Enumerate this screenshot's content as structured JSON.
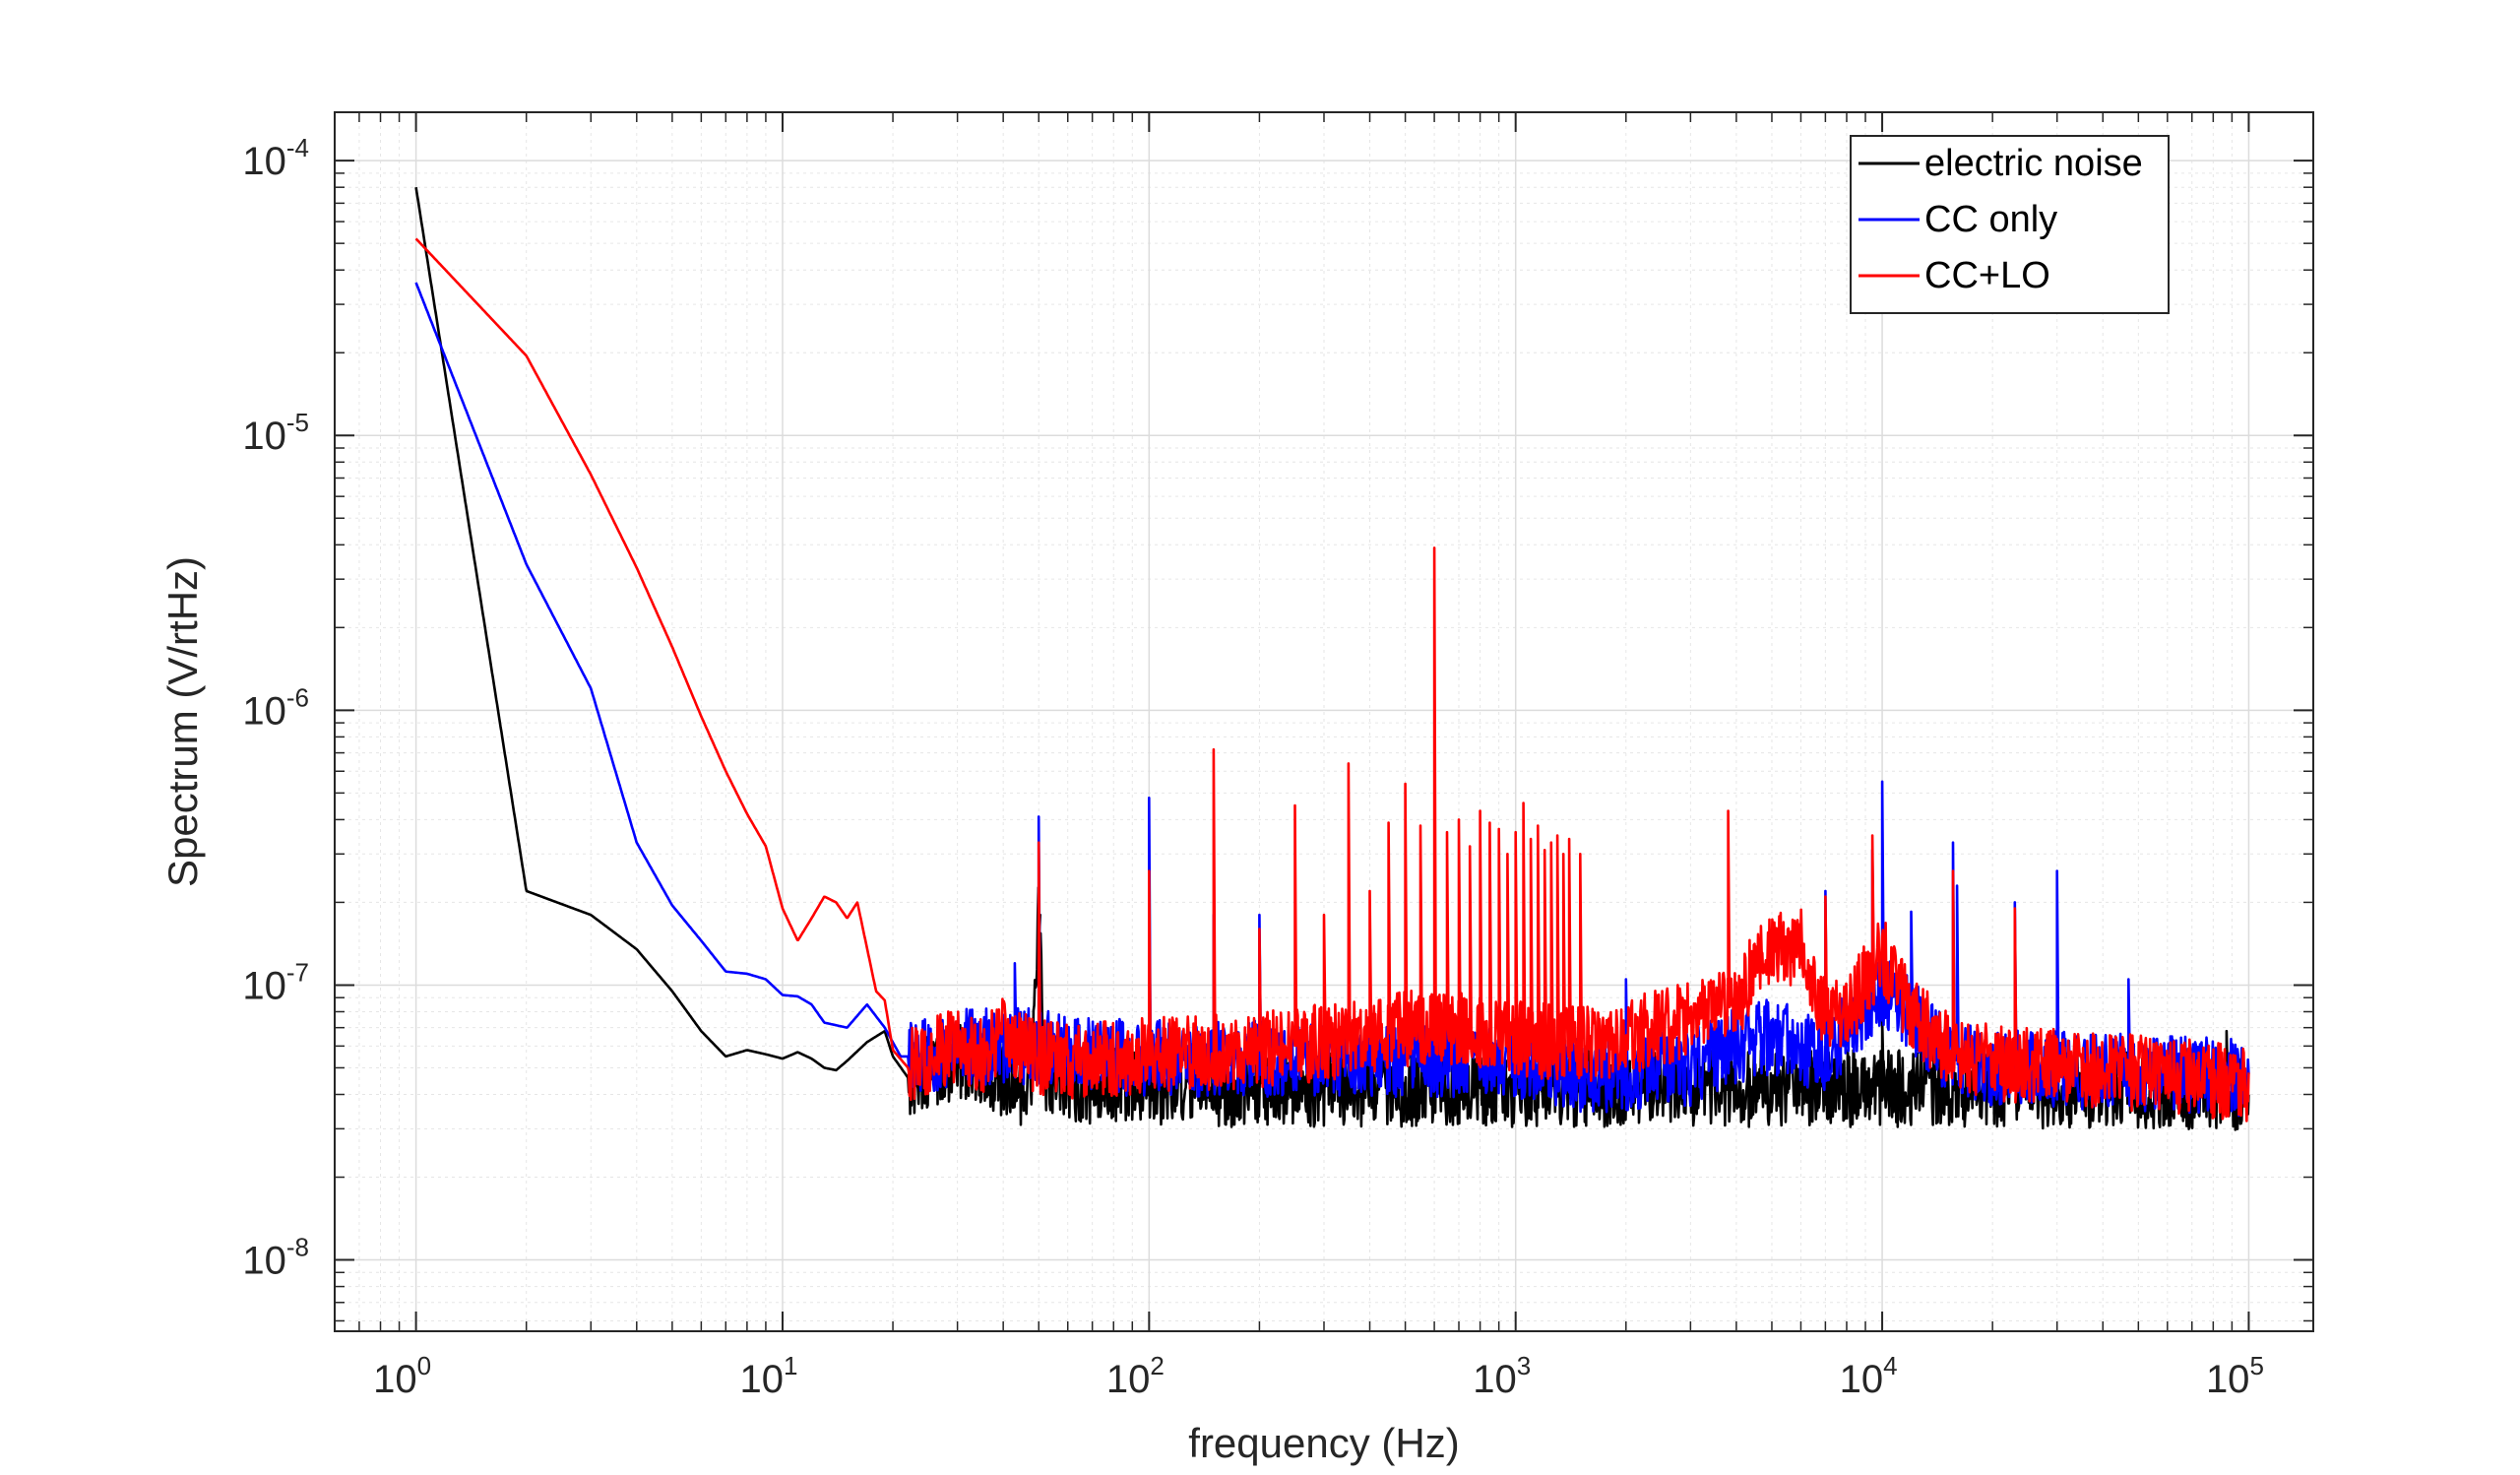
{
  "chart_data": {
    "type": "line",
    "xlabel": "frequency (Hz)",
    "ylabel": "Spectrum (V/rtHz)",
    "xscale": "log",
    "yscale": "log",
    "xlim": [
      0.6,
      150000
    ],
    "ylim": [
      5.5e-09,
      0.00015
    ],
    "x_ticks": [
      {
        "base": "10",
        "exp": "0",
        "value": 1
      },
      {
        "base": "10",
        "exp": "1",
        "value": 10
      },
      {
        "base": "10",
        "exp": "2",
        "value": 100
      },
      {
        "base": "10",
        "exp": "3",
        "value": 1000
      },
      {
        "base": "10",
        "exp": "4",
        "value": 10000
      },
      {
        "base": "10",
        "exp": "5",
        "value": 100000
      }
    ],
    "y_ticks": [
      {
        "base": "10",
        "exp": "-8",
        "value": 1e-08
      },
      {
        "base": "10",
        "exp": "-7",
        "value": 1e-07
      },
      {
        "base": "10",
        "exp": "-6",
        "value": 1e-06
      },
      {
        "base": "10",
        "exp": "-5",
        "value": 1e-05
      },
      {
        "base": "10",
        "exp": "-4",
        "value": 0.0001
      }
    ],
    "grid": true,
    "minor_grid": true,
    "legend_position": "top-right",
    "series": [
      {
        "name": "electric noise",
        "color": "#000000",
        "points": [
          [
            1,
            8e-05
          ],
          [
            2,
            2.2e-07
          ],
          [
            3,
            1.8e-07
          ],
          [
            4,
            1.35e-07
          ],
          [
            5,
            9.5e-08
          ],
          [
            6,
            6.8e-08
          ],
          [
            7,
            5.5e-08
          ],
          [
            8,
            5.8e-08
          ],
          [
            9,
            5.6e-08
          ],
          [
            10,
            5.4e-08
          ],
          [
            11,
            5.7e-08
          ],
          [
            12,
            5.4e-08
          ],
          [
            13,
            5e-08
          ],
          [
            14,
            4.9e-08
          ],
          [
            15,
            5.3e-08
          ],
          [
            17,
            6.2e-08
          ],
          [
            19,
            6.8e-08
          ],
          [
            20,
            5.5e-08
          ],
          [
            22,
            4.6e-08
          ],
          [
            25,
            4.8e-08
          ],
          [
            30,
            5.2e-08
          ],
          [
            35,
            5e-08
          ],
          [
            40,
            4.6e-08
          ],
          [
            45,
            4.2e-08
          ],
          [
            48,
            5e-08
          ],
          [
            50,
            1.8e-07
          ],
          [
            52,
            4.8e-08
          ],
          [
            60,
            4.4e-08
          ],
          [
            70,
            4.3e-08
          ],
          [
            100,
            4.2e-08
          ],
          [
            10000,
            4.2e-08
          ],
          [
            100000,
            4.1e-08
          ]
        ],
        "noise_floor": 4e-08,
        "spikes": [
          [
            50,
            1.8e-07
          ],
          [
            10000,
            7.5e-08
          ],
          [
            87000,
            6.8e-08
          ]
        ]
      },
      {
        "name": "CC only",
        "color": "#0000ff",
        "points": [
          [
            1,
            3.6e-05
          ],
          [
            2,
            3.4e-06
          ],
          [
            3,
            1.2e-06
          ],
          [
            4,
            3.3e-07
          ],
          [
            5,
            1.95e-07
          ],
          [
            6,
            1.45e-07
          ],
          [
            7,
            1.12e-07
          ],
          [
            8,
            1.1e-07
          ],
          [
            9,
            1.05e-07
          ],
          [
            10,
            9.2e-08
          ],
          [
            11,
            9.1e-08
          ],
          [
            12,
            8.5e-08
          ],
          [
            13,
            7.3e-08
          ],
          [
            15,
            7e-08
          ],
          [
            17,
            8.5e-08
          ],
          [
            19,
            7e-08
          ],
          [
            21,
            5.5e-08
          ],
          [
            25,
            5.5e-08
          ],
          [
            30,
            6e-08
          ],
          [
            35,
            6e-08
          ],
          [
            40,
            6e-08
          ],
          [
            50,
            6e-08
          ],
          [
            70,
            5.5e-08
          ],
          [
            100,
            5.4e-08
          ],
          [
            300,
            5.4e-08
          ],
          [
            1000,
            5.4e-08
          ],
          [
            1600,
            4.6e-08
          ],
          [
            2000,
            4.8e-08
          ],
          [
            3000,
            5e-08
          ],
          [
            4000,
            6e-08
          ],
          [
            5000,
            6.5e-08
          ],
          [
            7000,
            5.5e-08
          ],
          [
            10000,
            1e-07
          ],
          [
            15000,
            5.5e-08
          ],
          [
            20000,
            5e-08
          ],
          [
            50000,
            4.8e-08
          ],
          [
            100000,
            4.6e-08
          ]
        ],
        "noise_floor": 5e-08,
        "spikes": [
          [
            43,
            1.2e-07
          ],
          [
            50,
            4.1e-07
          ],
          [
            100,
            4.8e-07
          ],
          [
            150,
            1.8e-07
          ],
          [
            200,
            1.8e-07
          ],
          [
            2000,
            1.05e-07
          ],
          [
            7000,
            2.2e-07
          ],
          [
            9400,
            3.1e-07
          ],
          [
            10000,
            5.5e-07
          ],
          [
            12000,
            1.85e-07
          ],
          [
            15600,
            3.3e-07
          ],
          [
            16000,
            2.3e-07
          ],
          [
            23000,
            2e-07
          ],
          [
            30000,
            2.6e-07
          ],
          [
            47000,
            1.05e-07
          ]
        ]
      },
      {
        "name": "CC+LO",
        "color": "#ff0000",
        "points": [
          [
            1,
            5.2e-05
          ],
          [
            2,
            1.95e-05
          ],
          [
            3,
            7.2e-06
          ],
          [
            4,
            3.3e-06
          ],
          [
            5,
            1.7e-06
          ],
          [
            6,
            9.5e-07
          ],
          [
            7,
            6e-07
          ],
          [
            8,
            4.2e-07
          ],
          [
            9,
            3.2e-07
          ],
          [
            10,
            1.9e-07
          ],
          [
            11,
            1.45e-07
          ],
          [
            12,
            1.75e-07
          ],
          [
            13,
            2.1e-07
          ],
          [
            14,
            2e-07
          ],
          [
            15,
            1.75e-07
          ],
          [
            16,
            2e-07
          ],
          [
            18,
            9.5e-08
          ],
          [
            19,
            8.8e-08
          ],
          [
            20,
            5.8e-08
          ],
          [
            22,
            5e-08
          ],
          [
            25,
            5.5e-08
          ],
          [
            30,
            6e-08
          ],
          [
            35,
            5.5e-08
          ],
          [
            40,
            6.5e-08
          ],
          [
            50,
            5.5e-08
          ],
          [
            60,
            5.2e-08
          ],
          [
            100,
            5.6e-08
          ],
          [
            200,
            5.8e-08
          ],
          [
            400,
            6.5e-08
          ],
          [
            600,
            7.2e-08
          ],
          [
            1000,
            6.5e-08
          ],
          [
            1500,
            6e-08
          ],
          [
            2000,
            6.5e-08
          ],
          [
            3000,
            7.5e-08
          ],
          [
            4000,
            8.5e-08
          ],
          [
            4500,
            1.2e-07
          ],
          [
            5000,
            1.3e-07
          ],
          [
            6000,
            1.4e-07
          ],
          [
            7000,
            7.5e-08
          ],
          [
            8000,
            8e-08
          ],
          [
            10000,
            1.3e-07
          ],
          [
            12000,
            8e-08
          ],
          [
            15000,
            6e-08
          ],
          [
            20000,
            5.2e-08
          ],
          [
            50000,
            4.8e-08
          ],
          [
            100000,
            4.4e-08
          ]
        ],
        "noise_floor": 5.2e-08,
        "spikes": [
          [
            50,
            3.3e-07
          ],
          [
            100,
            2.6e-07
          ],
          [
            150,
            7.2e-07
          ],
          [
            200,
            1.6e-07
          ],
          [
            250,
            4.5e-07
          ],
          [
            300,
            1.8e-07
          ],
          [
            350,
            6.4e-07
          ],
          [
            400,
            2.2e-07
          ],
          [
            450,
            3.9e-07
          ],
          [
            500,
            5.4e-07
          ],
          [
            550,
            3.8e-07
          ],
          [
            600,
            3.9e-06
          ],
          [
            650,
            3.6e-07
          ],
          [
            700,
            4e-07
          ],
          [
            750,
            3.2e-07
          ],
          [
            800,
            4.3e-07
          ],
          [
            850,
            3.9e-07
          ],
          [
            900,
            3.7e-07
          ],
          [
            950,
            3e-07
          ],
          [
            1000,
            3.6e-07
          ],
          [
            1050,
            4.6e-07
          ],
          [
            1100,
            3.4e-07
          ],
          [
            1150,
            3.8e-07
          ],
          [
            1200,
            3.1e-07
          ],
          [
            1250,
            3.3e-07
          ],
          [
            1300,
            3.5e-07
          ],
          [
            1350,
            3e-07
          ],
          [
            1400,
            3.4e-07
          ],
          [
            1500,
            3e-07
          ],
          [
            3800,
            4.3e-07
          ],
          [
            7000,
            2.1e-07
          ],
          [
            9400,
            3.5e-07
          ],
          [
            15600,
            2.6e-07
          ],
          [
            23000,
            1.9e-07
          ]
        ]
      }
    ]
  }
}
